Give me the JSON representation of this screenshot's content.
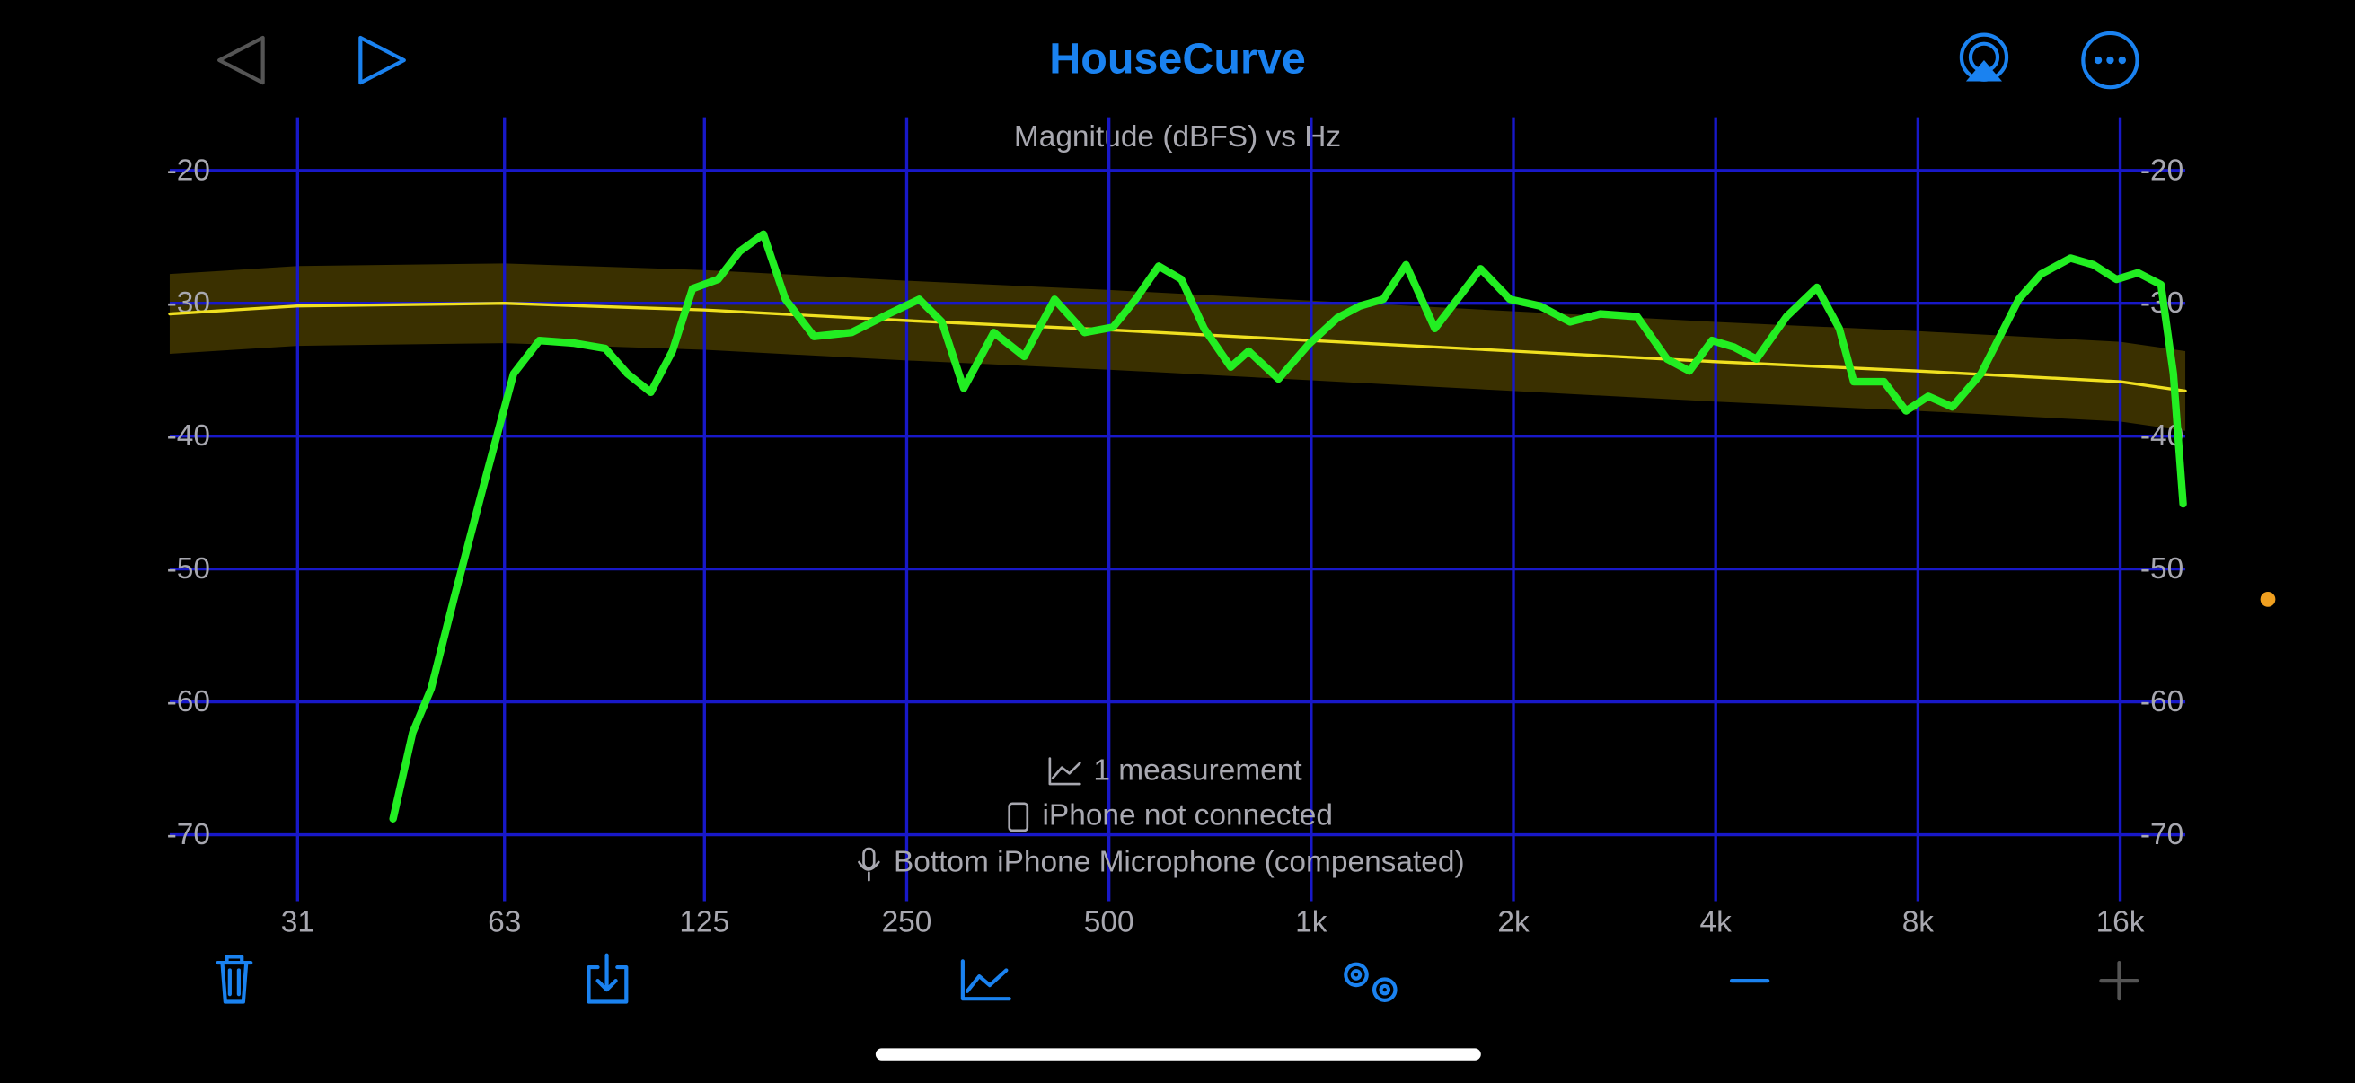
{
  "header": {
    "title": "HouseCurve"
  },
  "chart_data": {
    "type": "line",
    "title": "Magnitude (dBFS) vs Hz",
    "xscale": "log",
    "grid": true,
    "xlim": [
      20,
      20000
    ],
    "xticks": [
      31,
      63,
      125,
      250,
      500,
      {
        "value": 1000,
        "label": "1k"
      },
      {
        "value": 2000,
        "label": "2k"
      },
      {
        "value": 4000,
        "label": "4k"
      },
      {
        "value": 8000,
        "label": "8k"
      },
      {
        "value": 16000,
        "label": "16k"
      }
    ],
    "ylim": [
      -75,
      -16
    ],
    "yticks": [
      -20,
      -30,
      -40,
      -50,
      -60,
      -70
    ],
    "y2lim": [
      -75,
      -16
    ],
    "y2ticks": [
      -20,
      -30,
      -40,
      -50,
      -60,
      -70
    ],
    "series": [
      {
        "color": "#22ee22",
        "x": [
          43,
          46,
          49,
          53,
          59,
          65,
          71,
          80,
          89,
          96,
          104,
          112,
          120,
          131,
          141,
          153,
          165,
          182,
          207,
          235,
          261,
          282,
          304,
          337,
          374,
          415,
          460,
          507,
          548,
          593,
          641,
          693,
          759,
          807,
          894,
          991,
          1094,
          1182,
          1280,
          1384,
          1528,
          1650,
          1787,
          1976,
          2190,
          2428,
          2693,
          3056,
          3386,
          3656,
          3950,
          4260,
          4600,
          5100,
          5660,
          6110,
          6420,
          7120,
          7680,
          8290,
          9000,
          9930,
          11300,
          12200,
          13500,
          14600,
          15800,
          17000,
          18400,
          19200,
          19850
        ],
        "values": [
          -68.8,
          -62.3,
          -59,
          -52.2,
          -43.2,
          -35.3,
          -32.8,
          -33,
          -33.4,
          -35.3,
          -36.7,
          -33.6,
          -28.9,
          -28.2,
          -26.1,
          -24.8,
          -29.7,
          -32.5,
          -32.2,
          -30.8,
          -29.7,
          -31.4,
          -36.4,
          -32.2,
          -34,
          -29.7,
          -32.2,
          -31.8,
          -29.7,
          -27.2,
          -28.2,
          -31.9,
          -34.8,
          -33.6,
          -35.7,
          -33.1,
          -31.1,
          -30.2,
          -29.7,
          -27.1,
          -31.9,
          -29.7,
          -27.4,
          -29.7,
          -30.2,
          -31.4,
          -30.8,
          -31,
          -34.2,
          -35.1,
          -32.8,
          -33.3,
          -34.2,
          -31,
          -28.8,
          -31.9,
          -35.9,
          -35.9,
          -38.1,
          -37,
          -37.8,
          -35.3,
          -29.7,
          -27.8,
          -26.6,
          -27.1,
          -28.2,
          -27.7,
          -28.6,
          -35.3,
          -45.1
        ]
      },
      {
        "color": "#f0e020",
        "band_color": "#3a3000",
        "tolerance": 3,
        "x": [
          20,
          31,
          63,
          125,
          250,
          500,
          1000,
          2000,
          4000,
          8000,
          16000,
          20000
        ],
        "values": [
          -30.8,
          -30.2,
          -30,
          -30.5,
          -31.3,
          -32,
          -32.8,
          -33.6,
          -34.4,
          -35.1,
          -35.9,
          -36.6
        ]
      }
    ],
    "status": [
      "1 measurement",
      "iPhone not connected",
      "Bottom iPhone Microphone (compensated)"
    ]
  }
}
